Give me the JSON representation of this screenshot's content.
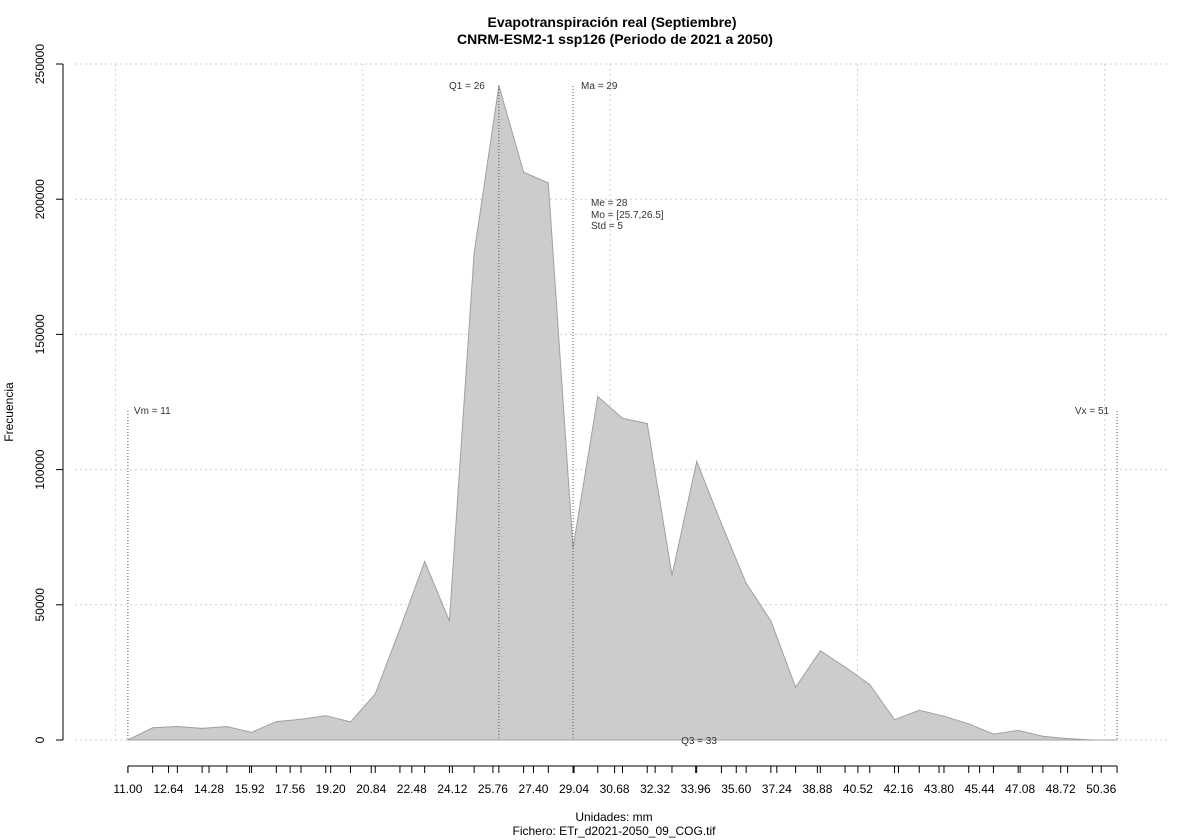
{
  "chart_data": {
    "type": "area",
    "title": "Evapotranspiración real (Septiembre)",
    "subtitle": "CNRM-ESM2-1 ssp126 (Periodo de 2021 a 2050)",
    "xlabel": "Unidades: mm",
    "ylabel": "Frecuencia",
    "footer": "Fichero: ETr_d2021-2050_09_COG.tif",
    "xlim": [
      10.5,
      51.5
    ],
    "ylim": [
      0,
      250000
    ],
    "grid": true,
    "x_tick_labels": [
      "11.00",
      "12.64",
      "14.28",
      "15.92",
      "17.56",
      "19.20",
      "20.84",
      "22.48",
      "24.12",
      "25.76",
      "27.40",
      "29.04",
      "30.68",
      "32.32",
      "33.96",
      "35.60",
      "37.24",
      "38.88",
      "40.52",
      "42.16",
      "43.80",
      "45.44",
      "47.08",
      "48.72",
      "50.36"
    ],
    "x_ticks": [
      11.0,
      12.64,
      14.28,
      15.92,
      17.56,
      19.2,
      20.84,
      22.48,
      24.12,
      25.76,
      27.4,
      29.04,
      30.68,
      32.32,
      33.96,
      35.6,
      37.24,
      38.88,
      40.52,
      42.16,
      43.8,
      45.44,
      47.08,
      48.72,
      50.36
    ],
    "x_minor_ticks": [
      11.0,
      12.0,
      13.0,
      14.0,
      15.0,
      16.0,
      17.0,
      18.0,
      19.0,
      20.0,
      21.0,
      22.0,
      23.0,
      24.0,
      25.0,
      26.0,
      27.0,
      28.0,
      29.0,
      30.0,
      31.0,
      32.0,
      33.0,
      34.0,
      35.0,
      36.0,
      37.0,
      38.0,
      39.0,
      40.0,
      41.0,
      42.0,
      43.0,
      44.0,
      45.0,
      46.0,
      47.0,
      48.0,
      49.0,
      50.0,
      51.0
    ],
    "x_grid": [
      10.5,
      20.5,
      30.5,
      40.5,
      50.5
    ],
    "y_ticks": [
      0,
      50000,
      100000,
      150000,
      200000,
      250000
    ],
    "y_tick_labels": [
      "0",
      "50000",
      "100000",
      "150000",
      "200000",
      "250000"
    ],
    "x": [
      11.0,
      12.0,
      13.0,
      14.0,
      15.0,
      16.0,
      17.0,
      18.0,
      19.0,
      20.0,
      21.0,
      22.0,
      23.0,
      24.0,
      25.0,
      26.0,
      27.0,
      28.0,
      29.0,
      30.0,
      31.0,
      32.0,
      33.0,
      34.0,
      35.0,
      36.0,
      37.0,
      38.0,
      39.0,
      40.0,
      41.0,
      42.0,
      43.0,
      44.0,
      45.0,
      46.0,
      47.0,
      48.0,
      49.0,
      50.0,
      51.0
    ],
    "values": [
      0,
      4500,
      5000,
      4300,
      5000,
      2800,
      6800,
      7700,
      9000,
      6700,
      17000,
      41000,
      66000,
      44000,
      180000,
      242000,
      210000,
      206000,
      71000,
      127000,
      119000,
      117000,
      61000,
      103000,
      80000,
      58000,
      44000,
      19500,
      33000,
      27000,
      20500,
      7500,
      11000,
      8800,
      6000,
      2200,
      3500,
      1400,
      500,
      0,
      0
    ],
    "fill_color": "#cccccc",
    "line_color": "#a0a0a0",
    "vertical_lines": [
      {
        "x": 11.0,
        "label": "Vm = 11"
      },
      {
        "x": 26.0,
        "label": "Q1 = 26"
      },
      {
        "x": 29.0,
        "label": "Ma = 29"
      },
      {
        "x": 51.0,
        "label": "Vx = 51"
      }
    ],
    "stats_text": [
      "Me = 28",
      "Mo = [25.7,26.5]",
      "Std = 5"
    ],
    "q3_label": "Q3 = 33"
  }
}
